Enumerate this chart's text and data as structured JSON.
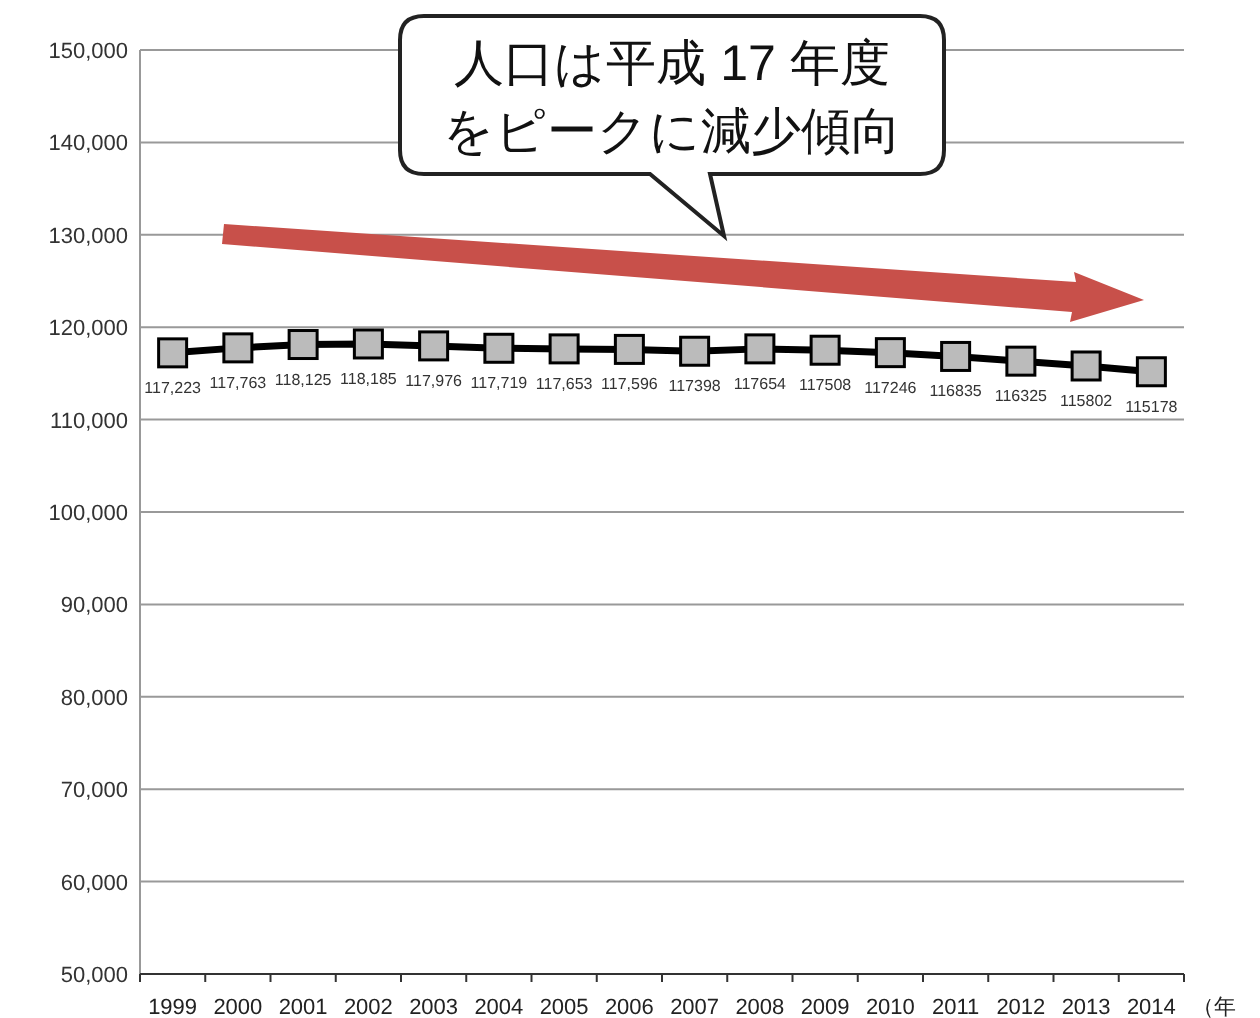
{
  "chart_data": {
    "type": "line",
    "xlabel": "（年",
    "categories": [
      "1999",
      "2000",
      "2001",
      "2002",
      "2003",
      "2004",
      "2005",
      "2006",
      "2007",
      "2008",
      "2009",
      "2010",
      "2011",
      "2012",
      "2013",
      "2014"
    ],
    "series": [
      {
        "color": "#000000",
        "values": [
          117223,
          117763,
          118125,
          118185,
          117976,
          117719,
          117653,
          117596,
          117398,
          117654,
          117508,
          117246,
          116835,
          116325,
          115802,
          115178
        ],
        "value_labels": [
          "117,223",
          "117,763",
          "118,125",
          "118,185",
          "117,976",
          "117,719",
          "117,653",
          "117,596",
          "117398",
          "117654",
          "117508",
          "117246",
          "116835",
          "116325",
          "115802",
          "115178"
        ]
      }
    ],
    "ylim": [
      50000,
      150000
    ],
    "yticks": [
      {
        "value": 50000,
        "label": "50,000"
      },
      {
        "value": 60000,
        "label": "60,000"
      },
      {
        "value": 70000,
        "label": "70,000"
      },
      {
        "value": 80000,
        "label": "80,000"
      },
      {
        "value": 90000,
        "label": "90,000"
      },
      {
        "value": 100000,
        "label": "100,000"
      },
      {
        "value": 110000,
        "label": "110,000"
      },
      {
        "value": 120000,
        "label": "120,000"
      },
      {
        "value": 130000,
        "label": "130,000"
      },
      {
        "value": 140000,
        "label": "140,000"
      },
      {
        "value": 150000,
        "label": "150,000"
      }
    ],
    "grid": "y",
    "marker": "square",
    "line_style": "solid",
    "annotations": [
      "人口は平成 17 年度",
      "をピークに減少傾向"
    ]
  }
}
